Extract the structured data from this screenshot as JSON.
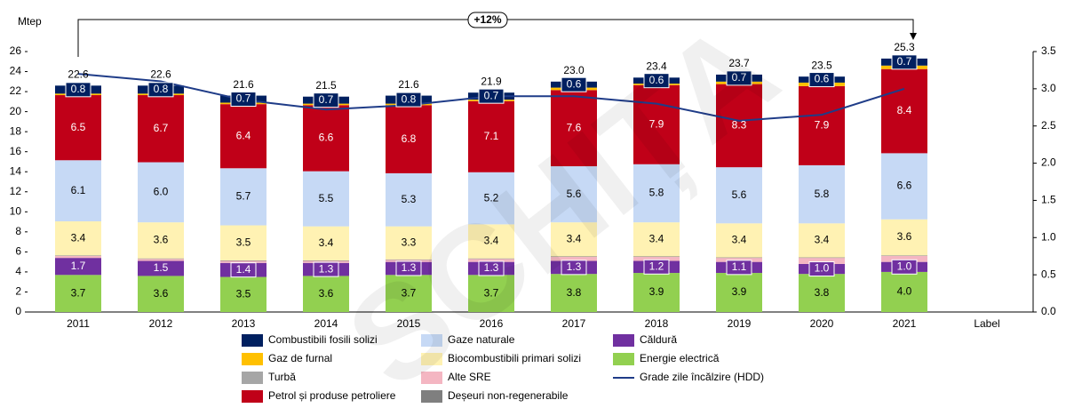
{
  "chart_data": {
    "type": "bar",
    "stacked": true,
    "y_label": "Mtep",
    "annotation": "+12%",
    "watermark": "SCHIȚA",
    "categories": [
      "2011",
      "2012",
      "2013",
      "2014",
      "2015",
      "2016",
      "2017",
      "2018",
      "2019",
      "2020",
      "2021",
      "Label"
    ],
    "ylim": [
      0,
      26
    ],
    "yticks": [
      0,
      2,
      4,
      6,
      8,
      10,
      12,
      14,
      16,
      18,
      20,
      22,
      24,
      26
    ],
    "y2lim": [
      0,
      3.5
    ],
    "y2ticks": [
      {
        "value": 0,
        "label": "0.0"
      },
      0.5,
      {
        "value": 1,
        "label": "1.0"
      },
      1.5,
      {
        "value": 2,
        "label": "2.0"
      },
      2.5,
      {
        "value": 3,
        "label": "3.0"
      },
      3.5
    ],
    "series": [
      {
        "name": "Energie electrică",
        "color": "#92d050",
        "values": [
          3.7,
          3.6,
          3.5,
          3.6,
          3.7,
          3.7,
          3.8,
          3.9,
          3.9,
          3.8,
          4.0,
          null
        ],
        "value_labels": [
          "3.7",
          "3.6",
          "3.5",
          "3.6",
          "3.7",
          "3.7",
          "3.8",
          "3.9",
          "3.9",
          "3.8",
          "4.0",
          null
        ]
      },
      {
        "name": "Căldură",
        "color": "#7030a0",
        "values": [
          1.7,
          1.5,
          1.4,
          1.3,
          1.3,
          1.3,
          1.3,
          1.2,
          1.1,
          1.0,
          1.0,
          null
        ],
        "value_labels": [
          "1.7",
          "1.5",
          "1.4",
          "1.3",
          "1.3",
          "1.3",
          "1.3",
          "1.2",
          "1.1",
          "1.0",
          "1.0",
          null
        ]
      },
      {
        "name": "Alte SRE",
        "color": "#f4b6c2",
        "values": [
          0.2,
          0.2,
          0.2,
          0.2,
          0.2,
          0.3,
          0.4,
          0.4,
          0.4,
          0.6,
          0.6,
          null
        ]
      },
      {
        "name": "Deșeuri non-regenerabile",
        "color": "#7f7f7f",
        "values": [
          0.05,
          0.05,
          0.05,
          0.05,
          0.05,
          0.05,
          0.05,
          0.05,
          0.05,
          0.05,
          0.05,
          null
        ]
      },
      {
        "name": "Turbă",
        "color": "#a6a6a6",
        "values": [
          0,
          0,
          0,
          0,
          0,
          0,
          0,
          0,
          0,
          0,
          0,
          null
        ]
      },
      {
        "name": "Biocombustibili primari solizi",
        "color": "#fff2b3",
        "values": [
          3.4,
          3.6,
          3.5,
          3.4,
          3.3,
          3.4,
          3.4,
          3.4,
          3.4,
          3.4,
          3.6,
          null
        ],
        "value_labels": [
          "3.4",
          "3.6",
          "3.5",
          "3.4",
          "3.3",
          "3.4",
          "3.4",
          "3.4",
          "3.4",
          "3.4",
          "3.6",
          null
        ]
      },
      {
        "name": "Gaze naturale",
        "color": "#c6d9f5",
        "values": [
          6.1,
          6.0,
          5.7,
          5.5,
          5.3,
          5.2,
          5.6,
          5.8,
          5.6,
          5.8,
          6.6,
          null
        ],
        "value_labels": [
          "6.1",
          "6.0",
          "5.7",
          "5.5",
          "5.3",
          "5.2",
          "5.6",
          "5.8",
          "5.6",
          "5.8",
          "6.6",
          null
        ]
      },
      {
        "name": "Petrol și produse petroliere",
        "color": "#c00018",
        "values": [
          6.5,
          6.7,
          6.4,
          6.6,
          6.8,
          7.1,
          7.6,
          7.9,
          8.3,
          7.9,
          8.4,
          null
        ],
        "value_labels": [
          "6.5",
          "6.7",
          "6.4",
          "6.6",
          "6.8",
          "7.1",
          "7.6",
          "7.9",
          "8.3",
          "7.9",
          "8.4",
          null
        ]
      },
      {
        "name": "Gaz de furnal",
        "color": "#ffc000",
        "values": [
          0.15,
          0.15,
          0.15,
          0.15,
          0.15,
          0.15,
          0.25,
          0.15,
          0.25,
          0.35,
          0.35,
          null
        ]
      },
      {
        "name": "Combustibili fosili solizi",
        "color": "#002060",
        "values": [
          0.8,
          0.8,
          0.7,
          0.7,
          0.8,
          0.7,
          0.6,
          0.6,
          0.7,
          0.6,
          0.7,
          null
        ],
        "value_labels": [
          "0.8",
          "0.8",
          "0.7",
          "0.7",
          "0.8",
          "0.7",
          "0.6",
          "0.6",
          "0.7",
          "0.6",
          "0.7",
          null
        ]
      },
      {
        "name": "Grade zile încălzire (HDD)",
        "color": "#1f3c88",
        "type": "line",
        "axis": "y2",
        "values": [
          3.2,
          3.1,
          2.85,
          2.72,
          2.78,
          2.9,
          2.9,
          2.8,
          2.57,
          2.65,
          3.0,
          null
        ]
      }
    ],
    "totals": {
      "values": [
        22.6,
        22.6,
        21.6,
        21.5,
        21.6,
        21.9,
        23.0,
        23.4,
        23.7,
        23.5,
        25.3,
        null
      ],
      "value_labels": [
        "22.6",
        "22.6",
        "21.6",
        "21.5",
        "21.6",
        "21.9",
        "23.0",
        "23.4",
        "23.7",
        "23.5",
        "25.3",
        null
      ]
    }
  }
}
